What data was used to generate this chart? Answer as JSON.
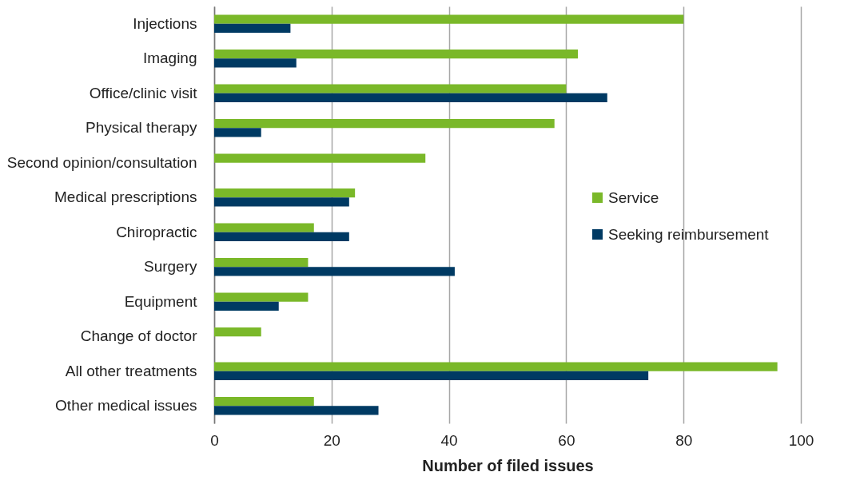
{
  "chart_data": {
    "type": "bar",
    "orientation": "horizontal",
    "xlabel": "Number of filed issues",
    "categories": [
      "Injections",
      "Imaging",
      "Office/clinic visit",
      "Physical therapy",
      "Second opinion/consultation",
      "Medical prescriptions",
      "Chiropractic",
      "Surgery",
      "Equipment",
      "Change of doctor",
      "All other treatments",
      "Other medical issues"
    ],
    "series": [
      {
        "name": "Service",
        "color": "#7ab829",
        "values": [
          80,
          62,
          60,
          58,
          36,
          24,
          17,
          16,
          16,
          8,
          96,
          17
        ]
      },
      {
        "name": "Seeking reimbursement",
        "color": "#003a63",
        "values": [
          13,
          14,
          67,
          8,
          null,
          23,
          23,
          41,
          11,
          null,
          74,
          28
        ]
      }
    ],
    "xlim": [
      0,
      100
    ],
    "xticks": [
      0,
      20,
      40,
      60,
      80,
      100
    ],
    "grid": "x",
    "legend": "right"
  }
}
